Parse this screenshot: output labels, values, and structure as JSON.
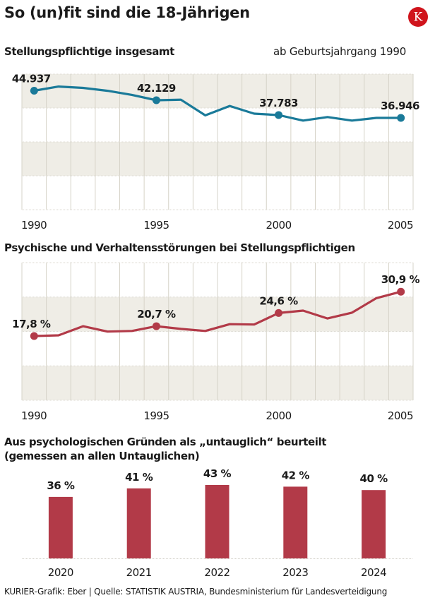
{
  "header": {
    "title": "So (un)fit sind die 18-Jährigen",
    "logo_letter": "K",
    "logo_color": "#d0141c"
  },
  "chart_data": [
    {
      "type": "line",
      "title": "Stellungspflichtige insgesamt",
      "note": "ab Geburtsjahrgang 1990",
      "color": "#1a7a99",
      "x": [
        1990,
        1991,
        1992,
        1993,
        1994,
        1995,
        1996,
        1997,
        1998,
        1999,
        2000,
        2001,
        2002,
        2003,
        2004,
        2005
      ],
      "values": [
        44937,
        46160,
        45750,
        44900,
        43700,
        42129,
        42300,
        37700,
        40450,
        38200,
        37783,
        36150,
        37200,
        36150,
        36950,
        36946
      ],
      "labels": [
        {
          "x": 1990,
          "text": "44.937"
        },
        {
          "x": 1995,
          "text": "42.129"
        },
        {
          "x": 2000,
          "text": "37.783"
        },
        {
          "x": 2005,
          "text": "36.946"
        }
      ],
      "xtick_labels": [
        "1990",
        "1995",
        "2000",
        "2005"
      ],
      "xtick_values": [
        1990,
        1995,
        2000,
        2005
      ],
      "ylim": [
        10000,
        49800
      ],
      "grid": "bands"
    },
    {
      "type": "line",
      "title": "Psychische und Verhaltensstörungen bei Stellungspflichtigen",
      "color": "#b23a48",
      "x": [
        1990,
        1991,
        1992,
        1993,
        1994,
        1995,
        1996,
        1997,
        1998,
        1999,
        2000,
        2001,
        2002,
        2003,
        2004,
        2005
      ],
      "values": [
        17.8,
        18.0,
        20.7,
        19.1,
        19.3,
        20.7,
        19.9,
        19.3,
        21.3,
        21.2,
        24.6,
        25.3,
        23.0,
        24.7,
        29.0,
        30.9
      ],
      "labels": [
        {
          "x": 1990,
          "text": "17,8 %"
        },
        {
          "x": 1995,
          "text": "20,7 %"
        },
        {
          "x": 2000,
          "text": "24,6 %"
        },
        {
          "x": 2005,
          "text": "30,9 %"
        }
      ],
      "xtick_labels": [
        "1990",
        "1995",
        "2000",
        "2005"
      ],
      "xtick_values": [
        1990,
        1995,
        2000,
        2005
      ],
      "ylim": [
        -1.2,
        39.5
      ],
      "grid": "bands"
    },
    {
      "type": "bar",
      "title": "Aus psychologischen Gründen als „untauglich“ beurteilt",
      "subtitle": "(gemessen an allen Untauglichen)",
      "color": "#b23a48",
      "categories": [
        "2020",
        "2021",
        "2022",
        "2023",
        "2024"
      ],
      "values": [
        36,
        41,
        43,
        42,
        40
      ],
      "value_labels": [
        "36 %",
        "41 %",
        "43 %",
        "42 %",
        "40 %"
      ],
      "unit": "%"
    }
  ],
  "footer": {
    "source": "KURIER-Grafik: Eber | Quelle: STATISTIK AUSTRIA, Bundesministerium für Landesverteidigung"
  }
}
